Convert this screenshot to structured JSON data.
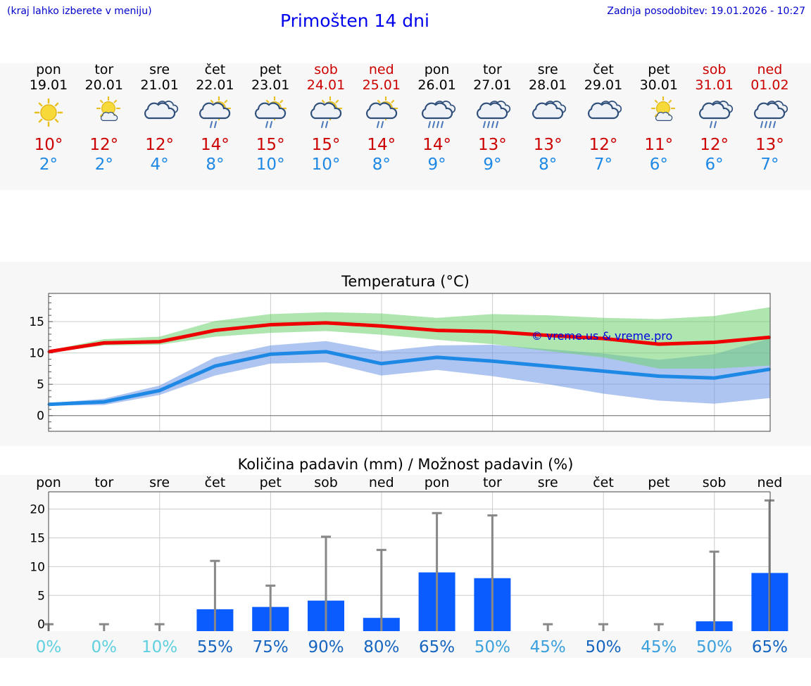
{
  "header": {
    "hint": "(kraj lahko izberete v meniju)",
    "title": "Primošten 14 dni",
    "updated": "Zadnja posodobitev: 19.01.2026 - 10:27"
  },
  "days": [
    {
      "name": "pon",
      "date": "19.01",
      "weekend": false,
      "icon": "sunny-icon",
      "tmax": "10°",
      "tmin": "2°"
    },
    {
      "name": "tor",
      "date": "20.01",
      "weekend": false,
      "icon": "sun-cloud-icon",
      "tmax": "12°",
      "tmin": "2°"
    },
    {
      "name": "sre",
      "date": "21.01",
      "weekend": false,
      "icon": "cloudy-icon",
      "tmax": "12°",
      "tmin": "4°"
    },
    {
      "name": "čet",
      "date": "22.01",
      "weekend": false,
      "icon": "sun-cloud-rain-icon",
      "tmax": "14°",
      "tmin": "8°"
    },
    {
      "name": "pet",
      "date": "23.01",
      "weekend": false,
      "icon": "sun-cloud-rain-icon",
      "tmax": "15°",
      "tmin": "10°"
    },
    {
      "name": "sob",
      "date": "24.01",
      "weekend": true,
      "icon": "sun-cloud-rain-icon",
      "tmax": "15°",
      "tmin": "10°"
    },
    {
      "name": "ned",
      "date": "25.01",
      "weekend": true,
      "icon": "sun-cloud-rain-icon",
      "tmax": "14°",
      "tmin": "8°"
    },
    {
      "name": "pon",
      "date": "26.01",
      "weekend": false,
      "icon": "cloud-heavy-rain-icon",
      "tmax": "14°",
      "tmin": "9°"
    },
    {
      "name": "tor",
      "date": "27.01",
      "weekend": false,
      "icon": "cloud-heavy-rain-icon",
      "tmax": "13°",
      "tmin": "9°"
    },
    {
      "name": "sre",
      "date": "28.01",
      "weekend": false,
      "icon": "cloudy-icon",
      "tmax": "13°",
      "tmin": "8°"
    },
    {
      "name": "čet",
      "date": "29.01",
      "weekend": false,
      "icon": "cloudy-icon",
      "tmax": "12°",
      "tmin": "7°"
    },
    {
      "name": "pet",
      "date": "30.01",
      "weekend": false,
      "icon": "sun-cloud-icon",
      "tmax": "11°",
      "tmin": "6°"
    },
    {
      "name": "sob",
      "date": "31.01",
      "weekend": true,
      "icon": "cloud-rain-icon",
      "tmax": "12°",
      "tmin": "6°"
    },
    {
      "name": "ned",
      "date": "01.02",
      "weekend": true,
      "icon": "cloud-heavy-rain-icon",
      "tmax": "13°",
      "tmin": "7°"
    }
  ],
  "chart_data": [
    {
      "type": "line",
      "title": "Temperatura (°C)",
      "watermark": "© vreme.us & vreme.pro",
      "ylim": [
        -2.5,
        19.5
      ],
      "yticks": [
        0,
        5,
        10,
        15
      ],
      "x": [
        0,
        1,
        2,
        3,
        4,
        5,
        6,
        7,
        8,
        9,
        10,
        11,
        12,
        13
      ],
      "series": [
        {
          "name": "max",
          "color": "#ee0000",
          "values": [
            10.2,
            11.6,
            11.8,
            13.6,
            14.5,
            14.8,
            14.3,
            13.6,
            13.4,
            12.8,
            12.3,
            11.4,
            11.7,
            12.5
          ]
        },
        {
          "name": "max_range_low",
          "values": [
            10.0,
            11.2,
            11.3,
            12.6,
            13.2,
            13.5,
            12.9,
            12.1,
            11.4,
            10.3,
            9.3,
            7.5,
            7.5,
            8.0
          ]
        },
        {
          "name": "max_range_high",
          "values": [
            10.4,
            12.2,
            12.6,
            15.1,
            16.2,
            16.5,
            16.3,
            15.6,
            16.2,
            16.0,
            15.6,
            15.4,
            15.9,
            17.3
          ]
        },
        {
          "name": "min",
          "color": "#1e88e5",
          "values": [
            1.8,
            2.2,
            4.0,
            7.9,
            9.8,
            10.2,
            8.3,
            9.3,
            8.7,
            7.9,
            7.1,
            6.3,
            6.0,
            7.4
          ]
        },
        {
          "name": "min_range_low",
          "values": [
            1.6,
            1.7,
            3.3,
            6.4,
            8.3,
            8.5,
            6.4,
            7.3,
            6.3,
            5.0,
            3.5,
            2.4,
            1.9,
            2.8
          ]
        },
        {
          "name": "min_range_high",
          "values": [
            2.0,
            2.7,
            4.8,
            9.3,
            11.2,
            11.9,
            10.3,
            11.2,
            11.3,
            10.6,
            9.9,
            8.9,
            9.8,
            12.3
          ]
        }
      ]
    },
    {
      "type": "bar",
      "title": "Količina padavin (mm) / Možnost padavin (%)",
      "ylim": [
        -1.2,
        23
      ],
      "yticks": [
        0,
        5,
        10,
        15,
        20
      ],
      "categories": [
        "pon",
        "tor",
        "sre",
        "čet",
        "pet",
        "sob",
        "ned",
        "pon",
        "tor",
        "sre",
        "čet",
        "pet",
        "sob",
        "ned"
      ],
      "values": [
        0,
        0,
        0,
        2.6,
        3.0,
        4.1,
        1.1,
        9.0,
        8.0,
        0,
        0,
        0,
        0.5,
        8.9
      ],
      "max_values": [
        0,
        0,
        0,
        11,
        6.7,
        15.2,
        12.9,
        19.3,
        18.9,
        0,
        0,
        0,
        12.6,
        21.5
      ],
      "probability": [
        "0%",
        "0%",
        "10%",
        "55%",
        "75%",
        "90%",
        "80%",
        "65%",
        "50%",
        "45%",
        "50%",
        "45%",
        "50%",
        "65%"
      ],
      "probability_colors": [
        "#5fd0e0",
        "#5fd0e0",
        "#5fd0e0",
        "#1565c0",
        "#1565c0",
        "#1565c0",
        "#1565c0",
        "#1565c0",
        "#3aa0dc",
        "#3aa0dc",
        "#1565c0",
        "#3aa0dc",
        "#3aa0dc",
        "#1565c0"
      ]
    }
  ]
}
